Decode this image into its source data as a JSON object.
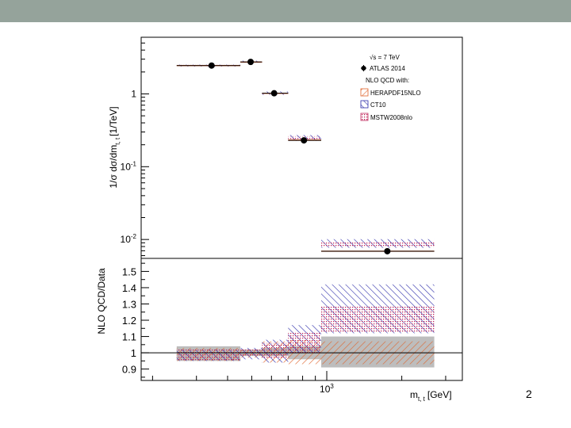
{
  "slide": {
    "number": "2"
  },
  "colors": {
    "header_bar": "#95a39b",
    "hera": "#e0632a",
    "ct10": "#2a2aa8",
    "mstw": "#c0285c",
    "gray_band": "#bdbdbd"
  },
  "chart_data": [
    {
      "type": "scatter",
      "scale": "log",
      "ylabel_parts": {
        "main": "1/σ dσ/dm",
        "sub": "t, t",
        "unit": "[1/TeV]"
      },
      "ylim": [
        0.0055,
        6
      ],
      "yticks": [
        {
          "v": 1,
          "label": "1"
        },
        {
          "v": 0.1,
          "label": "10",
          "sup": "-1"
        },
        {
          "v": 0.01,
          "label": "10",
          "sup": "-2"
        }
      ],
      "legend": {
        "energy": {
          "root": "√s",
          "rest": " = 7 TeV"
        },
        "data": "ATLAS 2014",
        "header": "NLO QCD with:",
        "entries": [
          {
            "name": "HERAPDF15NLO",
            "style": "hera"
          },
          {
            "name": "CT10",
            "style": "ct10"
          },
          {
            "name": "MSTW2008nlo",
            "style": "mstw"
          }
        ]
      },
      "bins": [
        {
          "xlo": 250,
          "xhi": 450,
          "xc": 345,
          "data": 2.45,
          "hera": 2.45,
          "ct10": [
            2.38,
            2.52
          ],
          "mstw": [
            2.4,
            2.5
          ]
        },
        {
          "xlo": 450,
          "xhi": 550,
          "xc": 495,
          "data": 2.75,
          "hera": 2.74,
          "ct10": [
            2.68,
            2.86
          ],
          "mstw": [
            2.7,
            2.82
          ]
        },
        {
          "xlo": 550,
          "xhi": 700,
          "xc": 615,
          "data": 1.02,
          "hera": 1.02,
          "ct10": [
            0.97,
            1.08
          ],
          "mstw": [
            0.99,
            1.06
          ]
        },
        {
          "xlo": 700,
          "xhi": 950,
          "xc": 810,
          "data": 0.23,
          "hera": 0.232,
          "ct10": [
            0.227,
            0.272
          ],
          "mstw": [
            0.232,
            0.262
          ]
        },
        {
          "xlo": 950,
          "xhi": 2700,
          "xc": 1750,
          "data": 0.0069,
          "hera": 0.0069,
          "ct10": [
            0.0077,
            0.0101
          ],
          "mstw": [
            0.0078,
            0.0092
          ]
        }
      ]
    },
    {
      "type": "area",
      "ylabel": "NLO QCD/Data",
      "ylim": [
        0.83,
        1.58
      ],
      "xlim": [
        180,
        3500
      ],
      "xlabel_parts": {
        "main": "m",
        "sub": "t, t",
        "unit": "[GeV]"
      },
      "xtick_major": {
        "v": 1000,
        "label": "10",
        "sup": "3"
      },
      "xtick_minor": [
        200,
        300,
        400,
        500,
        600,
        700,
        800,
        900,
        2000,
        3000
      ],
      "yticks": [
        {
          "v": 0.9,
          "label": "0.9"
        },
        {
          "v": 1.0,
          "label": "1"
        },
        {
          "v": 1.1,
          "label": "1.1"
        },
        {
          "v": 1.2,
          "label": "1.2"
        },
        {
          "v": 1.3,
          "label": "1.3"
        },
        {
          "v": 1.4,
          "label": "1.4"
        },
        {
          "v": 1.5,
          "label": "1.5"
        }
      ],
      "reference_line": 1.0,
      "bins": [
        {
          "xlo": 250,
          "xhi": 450,
          "gray": [
            0.95,
            1.04
          ],
          "hera": [
            0.95,
            1.03
          ],
          "ct10": [
            0.95,
            1.02
          ],
          "mstw": [
            0.95,
            1.02
          ]
        },
        {
          "xlo": 450,
          "xhi": 550,
          "gray": [
            0.98,
            1.02
          ],
          "hera": [
            0.97,
            1.02
          ],
          "ct10": [
            0.96,
            1.03
          ],
          "mstw": [
            0.98,
            1.02
          ]
        },
        {
          "xlo": 550,
          "xhi": 700,
          "gray": [
            0.98,
            1.03
          ],
          "hera": [
            0.94,
            1.07
          ],
          "ct10": [
            0.94,
            1.08
          ],
          "mstw": [
            0.97,
            1.06
          ]
        },
        {
          "xlo": 700,
          "xhi": 950,
          "gray": [
            0.96,
            1.04
          ],
          "hera": [
            0.93,
            1.08
          ],
          "ct10": [
            1.0,
            1.17
          ],
          "mstw": [
            1.0,
            1.13
          ]
        },
        {
          "xlo": 950,
          "xhi": 2700,
          "gray": [
            0.91,
            1.1
          ],
          "hera": [
            0.93,
            1.07
          ],
          "ct10": [
            1.12,
            1.42
          ],
          "mstw": [
            1.13,
            1.29
          ]
        }
      ]
    }
  ]
}
